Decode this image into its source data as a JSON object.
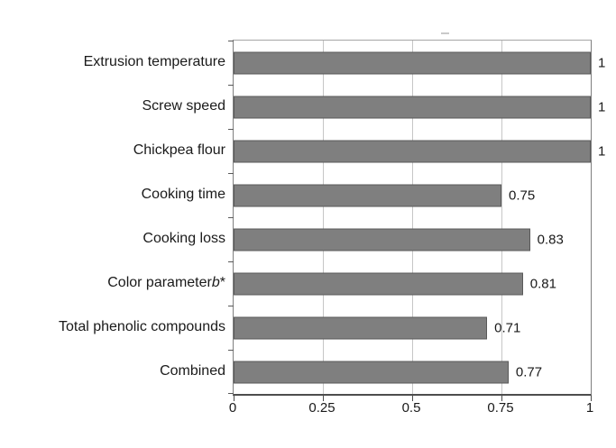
{
  "chart_data": {
    "type": "bar",
    "orientation": "horizontal",
    "title": "",
    "xlabel": "",
    "ylabel": "",
    "categories": [
      "Extrusion temperature",
      "Screw speed",
      "Chickpea flour",
      "Cooking time",
      "Cooking loss",
      "Color parameter b*",
      "Total phenolic compounds",
      "Combined"
    ],
    "category_italic_segment": {
      "index": 5,
      "prefix": "Color parameter ",
      "italic": "b",
      "suffix": "*"
    },
    "values": [
      1,
      1,
      1,
      0.75,
      0.83,
      0.81,
      0.71,
      0.77
    ],
    "value_labels": [
      "1",
      "1",
      "1",
      "0.75",
      "0.83",
      "0.81",
      "0.71",
      "0.77"
    ],
    "x_ticks": [
      "0",
      "0.25",
      "0.5",
      "0.75",
      "1"
    ],
    "x_tick_values": [
      0,
      0.25,
      0.5,
      0.75,
      1
    ],
    "xlim": [
      0,
      1
    ],
    "grid": "vertical-gridlines-on",
    "legend": "none",
    "colors": {
      "bar_fill": "#7f7f7f",
      "bar_border": "#595959",
      "gridline": "#c6c6c6",
      "axis": "#4d4d4d",
      "text": "#1a1a1a",
      "background": "#ffffff"
    }
  }
}
